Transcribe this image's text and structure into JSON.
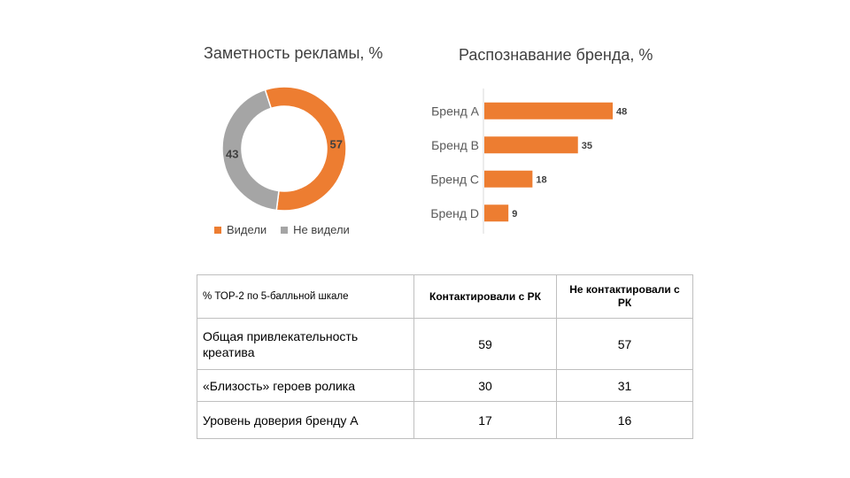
{
  "donut": {
    "title": "Заметность рекламы, %",
    "chart_data": {
      "type": "pie",
      "title": "Заметность рекламы, %",
      "categories": [
        "Видели",
        "Не видели"
      ],
      "values": [
        57,
        43
      ],
      "colors": [
        "#ED7D31",
        "#A5A5A5"
      ],
      "legend": "bottom"
    },
    "legend": [
      {
        "label": "Видели",
        "color": "#ED7D31"
      },
      {
        "label": "Не видели",
        "color": "#A5A5A5"
      }
    ]
  },
  "bars": {
    "title": "Распознавание бренда, %",
    "chart_data": {
      "type": "bar",
      "orientation": "horizontal",
      "title": "Распознавание бренда, %",
      "categories": [
        "Бренд А",
        "Бренд В",
        "Бренд С",
        "Бренд D"
      ],
      "values": [
        48,
        35,
        18,
        9
      ],
      "xlim": [
        0,
        50
      ],
      "grid": false,
      "color": "#ED7D31"
    }
  },
  "table": {
    "corner": "% ТОР-2 по 5-балльной шкале",
    "col1": "Контактировали с РК",
    "col2": "Не контактировали с РК",
    "rows": [
      {
        "label": "Общая привлекательность креатива",
        "v1": "59",
        "v2": "57"
      },
      {
        "label": "«Близость» героев ролика",
        "v1": "30",
        "v2": "31"
      },
      {
        "label": "Уровень доверия бренду А",
        "v1": "17",
        "v2": "16"
      }
    ]
  }
}
